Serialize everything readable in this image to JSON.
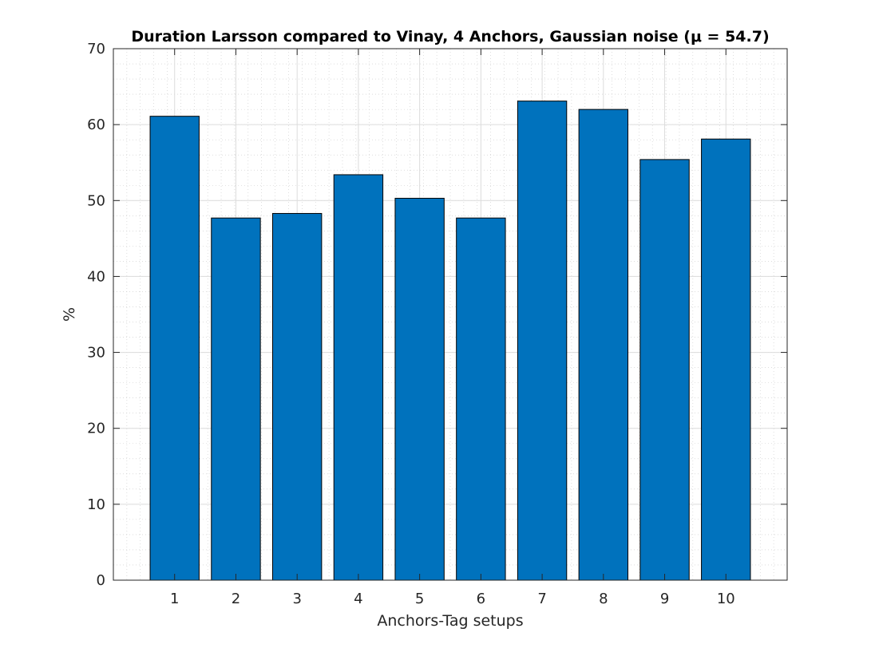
{
  "chart_data": {
    "type": "bar",
    "title": "Duration Larsson compared to Vinay, 4 Anchors, Gaussian noise (μ = 54.7)",
    "xlabel": "Anchors-Tag setups",
    "ylabel": "%",
    "categories": [
      "1",
      "2",
      "3",
      "4",
      "5",
      "6",
      "7",
      "8",
      "9",
      "10"
    ],
    "values": [
      61.1,
      47.7,
      48.3,
      53.4,
      50.3,
      47.7,
      63.1,
      62.0,
      55.4,
      58.1
    ],
    "xlim": [
      0,
      11
    ],
    "ylim": [
      0,
      70
    ],
    "yticks": [
      0,
      10,
      20,
      30,
      40,
      50,
      60,
      70
    ],
    "grid": true,
    "minor_grid": true,
    "legend": "none",
    "bar_color": "#0072BD",
    "bar_edge_color": "#000000"
  }
}
